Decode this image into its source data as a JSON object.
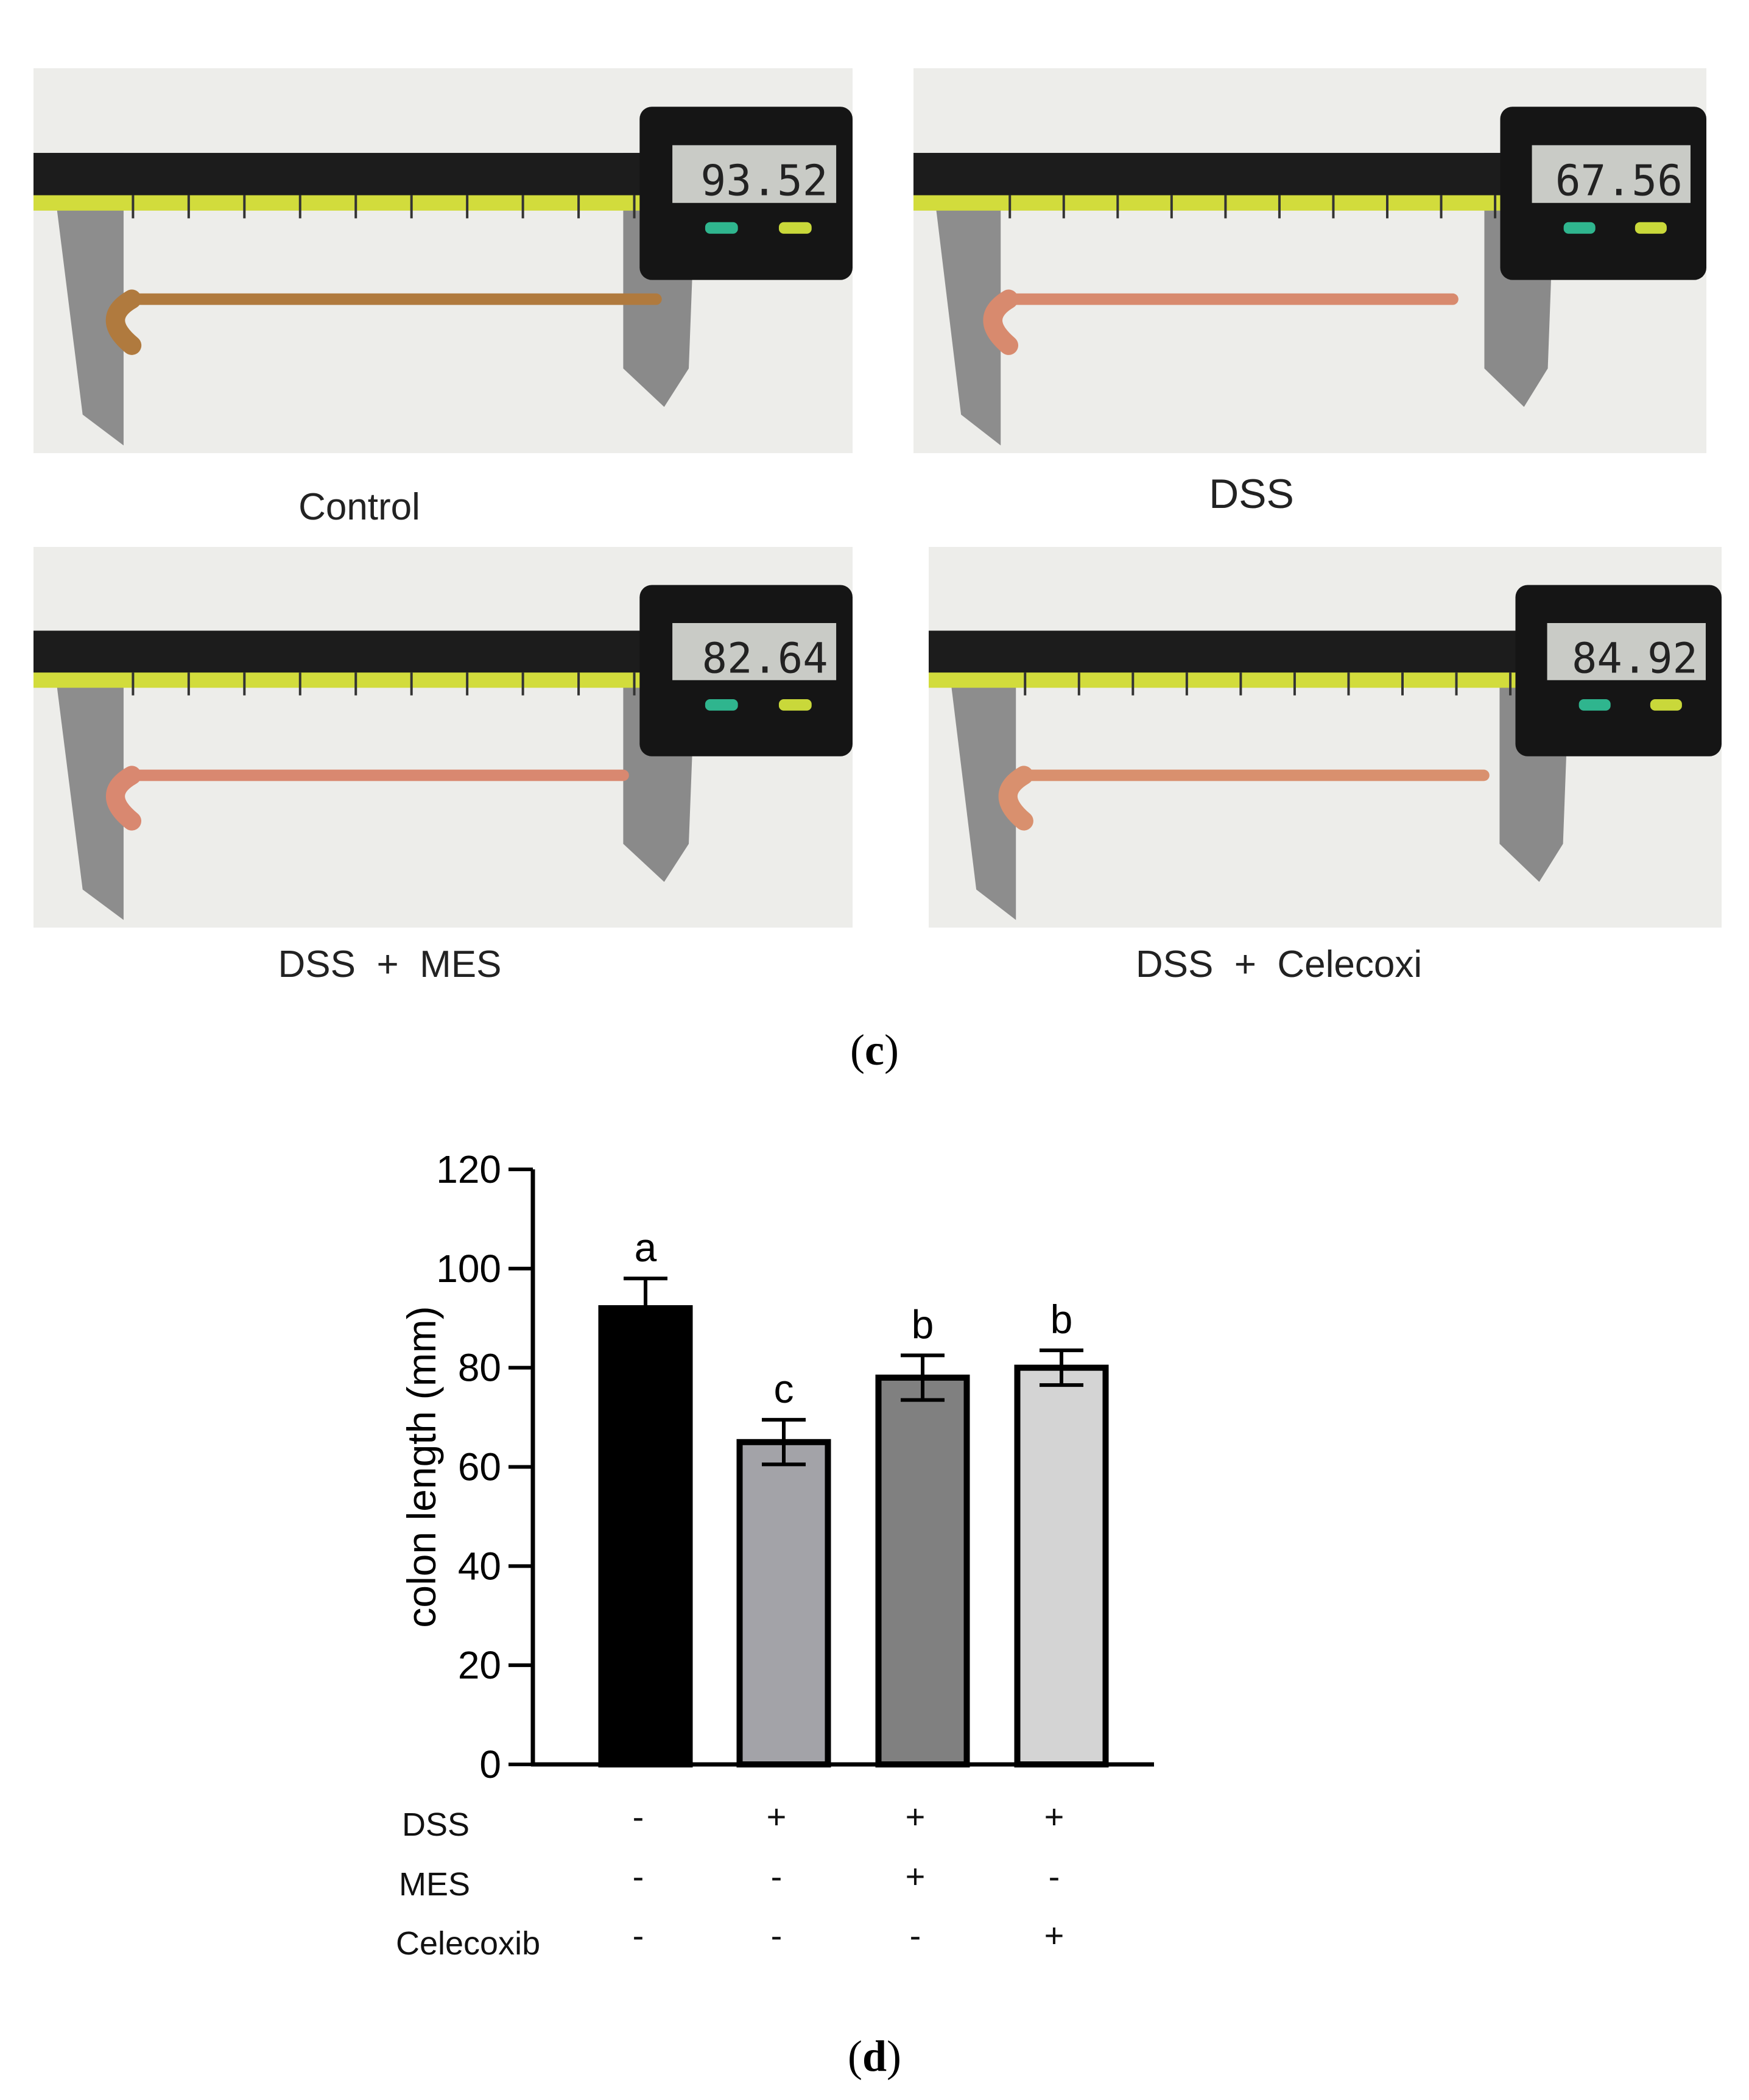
{
  "photos": [
    {
      "caption": "Control",
      "readout": "93.52"
    },
    {
      "caption": "DSS",
      "readout": "67.56"
    },
    {
      "caption": "DSS  +  MES",
      "readout": "82.64"
    },
    {
      "caption": "DSS  +  Celecoxi",
      "readout": "84.92"
    }
  ],
  "panel_c": {
    "open": "(",
    "letter": "c",
    "close": ")"
  },
  "panel_d": {
    "open": "(",
    "letter": "d",
    "close": ")"
  },
  "chart_data": {
    "type": "bar",
    "title": "",
    "xlabel": "",
    "ylabel": "colon length (mm)",
    "ylim": [
      0,
      120
    ],
    "yticks": [
      0,
      20,
      40,
      60,
      80,
      100,
      120
    ],
    "grid": false,
    "legend": "none",
    "bars": [
      {
        "value": 92,
        "error": 6,
        "letter": "a",
        "fill": "#000000"
      },
      {
        "value": 65,
        "error": 4.5,
        "letter": "c",
        "fill": "#a3a3a8"
      },
      {
        "value": 78,
        "error": 4.5,
        "letter": "b",
        "fill": "#808080"
      },
      {
        "value": 80,
        "error": 3.5,
        "letter": "b",
        "fill": "#d4d4d4"
      }
    ],
    "treatment_table": [
      {
        "label": "DSS",
        "values": [
          "-",
          "+",
          "+",
          "+"
        ]
      },
      {
        "label": "MES",
        "values": [
          "-",
          "-",
          "+",
          "-"
        ]
      },
      {
        "label": "Celecoxib",
        "values": [
          "-",
          "-",
          "-",
          "+"
        ]
      }
    ]
  }
}
